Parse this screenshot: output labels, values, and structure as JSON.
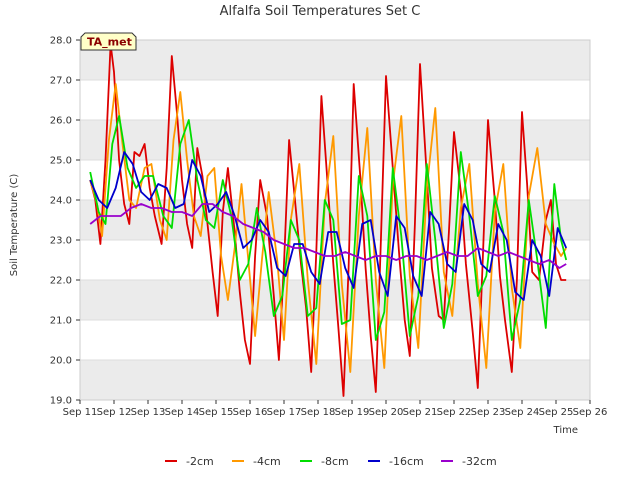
{
  "chart_data": {
    "type": "line",
    "title": "Alfalfa Soil Temperatures Set C",
    "xlabel": "Time",
    "ylabel": "Soil Temperature (C)",
    "badge": "TA_met",
    "xlim": [
      11,
      26
    ],
    "ylim": [
      19.0,
      28.0
    ],
    "x_ticks": [
      {
        "v": 11,
        "label": "Sep 11"
      },
      {
        "v": 12,
        "label": "Sep 12"
      },
      {
        "v": 13,
        "label": "Sep 13"
      },
      {
        "v": 14,
        "label": "Sep 14"
      },
      {
        "v": 15,
        "label": "Sep 15"
      },
      {
        "v": 16,
        "label": "Sep 16"
      },
      {
        "v": 17,
        "label": "Sep 17"
      },
      {
        "v": 18,
        "label": "Sep 18"
      },
      {
        "v": 19,
        "label": "Sep 19"
      },
      {
        "v": 20,
        "label": "Sep 20"
      },
      {
        "v": 21,
        "label": "Sep 21"
      },
      {
        "v": 22,
        "label": "Sep 22"
      },
      {
        "v": 23,
        "label": "Sep 23"
      },
      {
        "v": 24,
        "label": "Sep 24"
      },
      {
        "v": 25,
        "label": "Sep 25"
      },
      {
        "v": 26,
        "label": "Sep 26"
      }
    ],
    "y_ticks": [
      "19.0",
      "20.0",
      "21.0",
      "22.0",
      "23.0",
      "24.0",
      "25.0",
      "26.0",
      "27.0",
      "28.0"
    ],
    "grid": "horizontal bands",
    "legend_position": "bottom",
    "series": [
      {
        "name": "-2cm",
        "color": "#dd0000",
        "x": [
          11.3,
          11.6,
          11.8,
          12.0,
          12.3,
          12.6,
          12.9,
          13.1,
          13.4,
          13.8,
          14.0,
          14.3,
          14.6,
          14.8,
          15.0,
          15.3,
          15.6,
          15.9,
          16.2,
          16.6,
          16.9,
          17.2,
          17.6,
          17.9,
          18.2,
          18.6,
          18.9,
          19.2,
          19.6,
          19.9,
          20.2,
          20.6,
          20.9,
          21.2,
          21.6,
          21.9,
          22.2,
          22.6,
          22.9,
          23.2,
          23.6,
          23.9,
          24.2,
          24.6,
          24.9,
          25.1,
          25.3
        ],
        "y": [
          24.6,
          22.9,
          27.9,
          26.8,
          23.4,
          25.3,
          24.3,
          22.8,
          27.6,
          22.8,
          25.3,
          24.0,
          21.1,
          24.8,
          21.9,
          19.9,
          24.5,
          21.9,
          20.0,
          25.5,
          21.5,
          19.1,
          26.6,
          21.6,
          19.1,
          26.9,
          21.6,
          19.2,
          27.1,
          21.5,
          20.1,
          27.4,
          22.0,
          21.0,
          25.7,
          22.2,
          19.3,
          26.0,
          21.0,
          19.6,
          26.2,
          22.4,
          22.0,
          26.2,
          23.5,
          22.0,
          22.0
        ],
        "compact_note": "x/y arrays below replace the ones above when drawing"
      }
    ]
  }
}
